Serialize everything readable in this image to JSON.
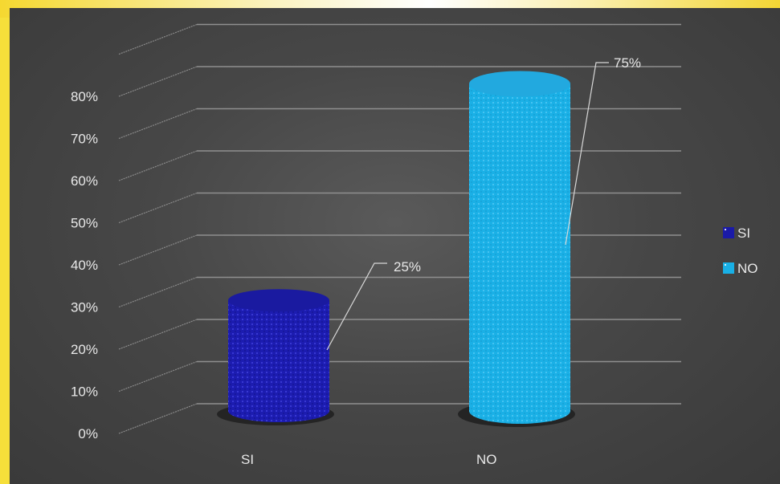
{
  "chart_data": {
    "type": "bar",
    "categories": [
      "SI",
      "NO"
    ],
    "values": [
      25,
      75
    ],
    "value_unit": "%",
    "data_labels": [
      "25%",
      "75%"
    ],
    "ylim": [
      0,
      80
    ],
    "yticks": [
      "0%",
      "10%",
      "20%",
      "30%",
      "40%",
      "50%",
      "60%",
      "70%",
      "80%"
    ],
    "grid": true,
    "legend_position": "right",
    "legend": [
      {
        "name": "SI",
        "color": "#1a1aa8"
      },
      {
        "name": "NO",
        "color": "#19b0e6"
      }
    ],
    "colors": {
      "SI": "#1a1aa8",
      "NO": "#19b0e6"
    },
    "style": "3d-cylinder"
  }
}
